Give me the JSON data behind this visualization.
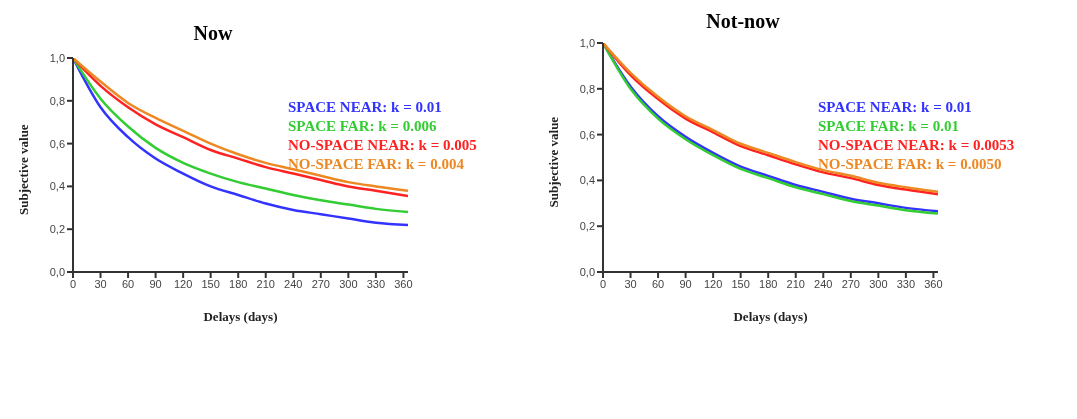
{
  "chart_data": [
    {
      "type": "line",
      "title": "Now",
      "xlabel": "Delays (days)",
      "ylabel": "Subjective value",
      "x": [
        0,
        30,
        60,
        90,
        120,
        150,
        180,
        210,
        240,
        270,
        300,
        330,
        365
      ],
      "series": [
        {
          "name": "SPACE NEAR: k = 0.01",
          "color": "#3333ff",
          "values": [
            1.0,
            0.77,
            0.63,
            0.53,
            0.46,
            0.4,
            0.36,
            0.32,
            0.29,
            0.27,
            0.25,
            0.23,
            0.22
          ]
        },
        {
          "name": "SPACE FAR: k = 0.006",
          "color": "#33cc33",
          "values": [
            1.0,
            0.81,
            0.68,
            0.58,
            0.51,
            0.46,
            0.42,
            0.39,
            0.36,
            0.335,
            0.315,
            0.295,
            0.28
          ]
        },
        {
          "name": "NO-SPACE NEAR: k = 0.005",
          "color": "#ff2222",
          "values": [
            1.0,
            0.87,
            0.77,
            0.69,
            0.63,
            0.57,
            0.53,
            0.49,
            0.46,
            0.43,
            0.4,
            0.38,
            0.355
          ]
        },
        {
          "name": "NO-SPACE FAR: k = 0.004",
          "color": "#ee8822",
          "values": [
            1.0,
            0.89,
            0.79,
            0.72,
            0.66,
            0.6,
            0.55,
            0.51,
            0.48,
            0.45,
            0.42,
            0.4,
            0.38
          ]
        }
      ],
      "xlim": [
        0,
        365
      ],
      "xticks": [
        0,
        30,
        60,
        90,
        120,
        150,
        180,
        210,
        240,
        270,
        300,
        330,
        360
      ],
      "ylim": [
        0,
        1
      ],
      "yticks": [
        {
          "value": 0,
          "label": "0,0"
        },
        {
          "value": 0.2,
          "label": "0,2"
        },
        {
          "value": 0.4,
          "label": "0,4"
        },
        {
          "value": 0.6,
          "label": "0,6"
        },
        {
          "value": 0.8,
          "label": "0,8"
        },
        {
          "value": 1,
          "label": "1,0"
        }
      ],
      "legend": "right",
      "marker": "none",
      "line_style": "solid"
    },
    {
      "type": "line",
      "title": "Not-now",
      "xlabel": "Delays (days)",
      "ylabel": "Subjective value",
      "x": [
        0,
        30,
        60,
        90,
        120,
        150,
        180,
        210,
        240,
        270,
        300,
        330,
        365
      ],
      "series": [
        {
          "name": "SPACE NEAR: k = 0.01",
          "color": "#3333ff",
          "values": [
            1.0,
            0.81,
            0.68,
            0.59,
            0.52,
            0.46,
            0.42,
            0.38,
            0.35,
            0.32,
            0.3,
            0.28,
            0.265
          ]
        },
        {
          "name": "SPACE FAR: k = 0.01",
          "color": "#33cc33",
          "values": [
            1.0,
            0.8,
            0.67,
            0.58,
            0.51,
            0.45,
            0.41,
            0.37,
            0.34,
            0.31,
            0.29,
            0.27,
            0.255
          ]
        },
        {
          "name": "NO-SPACE NEAR: k = 0.0053",
          "color": "#ff2222",
          "values": [
            1.0,
            0.86,
            0.755,
            0.67,
            0.61,
            0.55,
            0.51,
            0.47,
            0.435,
            0.41,
            0.38,
            0.36,
            0.34
          ]
        },
        {
          "name": "NO-SPACE FAR: k = 0.0050",
          "color": "#ee8822",
          "values": [
            1.0,
            0.87,
            0.765,
            0.68,
            0.62,
            0.56,
            0.52,
            0.48,
            0.445,
            0.42,
            0.39,
            0.37,
            0.35
          ]
        }
      ],
      "xlim": [
        0,
        365
      ],
      "xticks": [
        0,
        30,
        60,
        90,
        120,
        150,
        180,
        210,
        240,
        270,
        300,
        330,
        360
      ],
      "ylim": [
        0,
        1
      ],
      "yticks": [
        {
          "value": 0,
          "label": "0,0"
        },
        {
          "value": 0.2,
          "label": "0,2"
        },
        {
          "value": 0.4,
          "label": "0,4"
        },
        {
          "value": 0.6,
          "label": "0,6"
        },
        {
          "value": 0.8,
          "label": "0,8"
        },
        {
          "value": 1,
          "label": "1,0"
        }
      ],
      "legend": "right",
      "marker": "none",
      "line_style": "solid"
    }
  ]
}
